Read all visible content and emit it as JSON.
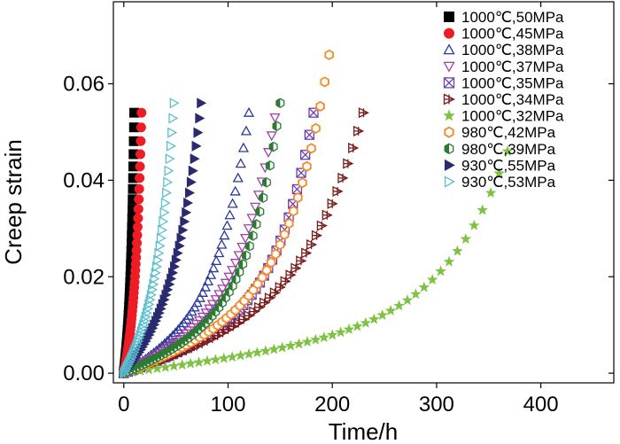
{
  "chart_data": {
    "type": "scatter",
    "title": "",
    "xlabel": "Time/h",
    "ylabel": "Creep strain",
    "xlim": [
      -10,
      470
    ],
    "ylim": [
      -0.002,
      0.077
    ],
    "xticks": [
      0,
      100,
      200,
      300,
      400
    ],
    "xtick_labels": [
      "0",
      "100",
      "200",
      "300",
      "400"
    ],
    "yticks": [
      0.0,
      0.02,
      0.04,
      0.06
    ],
    "ytick_labels": [
      "0.00",
      "0.02",
      "0.04",
      "0.06"
    ],
    "legend_position": "top-right",
    "series": [
      {
        "name": "1000℃,50MPa",
        "color": "#000000",
        "marker": "square",
        "filled": true,
        "x_end": 10,
        "strain_end": 0.054,
        "shape": 3
      },
      {
        "name": "1000℃,45MPa",
        "color": "#ee1c25",
        "marker": "circle",
        "filled": true,
        "x_end": 17,
        "strain_end": 0.054,
        "shape": 3
      },
      {
        "name": "1000℃,38MPa",
        "color": "#2b3a9a",
        "marker": "triangle-up",
        "filled": false,
        "x_end": 120,
        "strain_end": 0.054,
        "shape": 4
      },
      {
        "name": "1000℃,37MPa",
        "color": "#a040a8",
        "marker": "triangle-down",
        "filled": false,
        "x_end": 145,
        "strain_end": 0.053,
        "shape": 4
      },
      {
        "name": "1000℃,35MPa",
        "color": "#6a3fb0",
        "marker": "x-box",
        "filled": false,
        "x_end": 182,
        "strain_end": 0.054,
        "shape": 5
      },
      {
        "name": "1000℃,34MPa",
        "color": "#7a1a1a",
        "marker": "cross-triangle",
        "filled": false,
        "x_end": 230,
        "strain_end": 0.054,
        "shape": 4
      },
      {
        "name": "1000℃,32MPa",
        "color": "#7ec242",
        "marker": "star",
        "filled": true,
        "x_end": 368,
        "strain_end": 0.046,
        "shape": 6
      },
      {
        "name": "980℃,42MPa",
        "color": "#f7892a",
        "marker": "hexagon",
        "filled": false,
        "x_end": 197,
        "strain_end": 0.066,
        "shape": 5
      },
      {
        "name": "980℃,39MPa",
        "color": "#2d7a32",
        "marker": "half-hexagon",
        "filled": true,
        "x_end": 150,
        "strain_end": 0.056,
        "shape": 5
      },
      {
        "name": "930℃,55MPa",
        "color": "#2a2a6e",
        "marker": "triangle-right",
        "filled": true,
        "x_end": 74,
        "strain_end": 0.056,
        "shape": 3
      },
      {
        "name": "930℃,53MPa",
        "color": "#5bbfd0",
        "marker": "triangle-right",
        "filled": false,
        "x_end": 48,
        "strain_end": 0.056,
        "shape": 3
      }
    ]
  }
}
